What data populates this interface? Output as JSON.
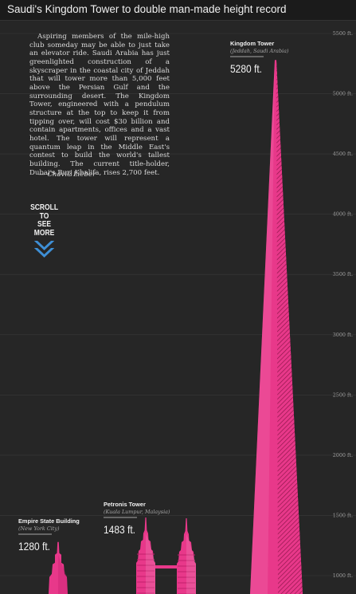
{
  "title": "Saudi's Kingdom Tower to double man-made height record",
  "intro": {
    "text": "Aspiring members of the mile-high club someday may be able to just take an elevator ride. Saudi Arabia has just greenlighted construction of a skyscraper in the coastal city of Jeddah that will tower more than 5,000 feet above the Persian Gulf and the surrounding desert. The Kingdom Tower, engineered with a pendulum structure at the top to keep it from tipping over, will cost $30 billion and contain apartments, offices and a vast hotel. The tower will represent a quantum leap in the Middle East's contest to build the world's tallest building. The current title-holder, Dubai's Burj Khalifa, rises 2,700 feet.",
    "byline": "— Chavie Lieber"
  },
  "scroll": {
    "line1": "SCROLL TO",
    "line2": "SEE MORE",
    "icon": "double-chevron-down-icon"
  },
  "colors": {
    "background": "#262626",
    "tower": "#e8388a",
    "tower_light": "#f06aa8",
    "tower_dark": "#c21f6c",
    "gridline": "#3a3a3a",
    "scroll_icon": "#3e8fd6"
  },
  "chart_data": {
    "type": "bar",
    "title": "Saudi's Kingdom Tower to double man-made height record",
    "ylabel_unit": "ft.",
    "ylim": [
      1000,
      5500
    ],
    "yticks": [
      5500,
      5000,
      4500,
      4000,
      3500,
      3000,
      2500,
      2000,
      1500,
      1000
    ],
    "grid": true,
    "axis_side": "right",
    "series": [
      {
        "name": "Empire State Building",
        "location": "(New York City)",
        "value": 1280,
        "label": "1280 ft."
      },
      {
        "name": "Petronis Tower",
        "location": "(Kuala Lumpur, Malaysia)",
        "value": 1483,
        "label": "1483 ft."
      },
      {
        "name": "Kingdom Tower",
        "location": "(Jeddah, Saudi Arabia)",
        "value": 5280,
        "label": "5280 ft."
      }
    ]
  }
}
